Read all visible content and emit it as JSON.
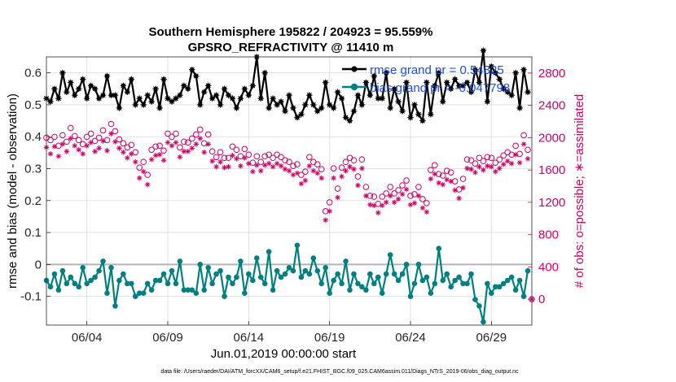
{
  "chart_data": {
    "type": "line",
    "title": "Southern Hemisphere 195822 / 204923 = 95.559%",
    "subtitle": "GPSRO_REFRACTIVITY @ 11410 m",
    "xlabel": "Jun.01,2019 00:00:00 start",
    "ylabel": "rmse and bias (model - observation)",
    "y2label": "# of obs: o=possible; ∗=assimilated",
    "footnote": "data file: /Users/raeder/DAI/ATM_forcXX/CAM6_setup/f.e21.FHIST_BGC.f09_025.CAM6assim.011/Diags_NTrS_2019-06/obs_diag_output.nc",
    "xlim": [
      1.5,
      31.5
    ],
    "ylim": [
      -0.19,
      0.65
    ],
    "y2lim": [
      -320,
      3000
    ],
    "x_ticks": [
      4,
      9,
      14,
      19,
      24,
      29
    ],
    "x_tick_labels": [
      "06/04",
      "06/09",
      "06/14",
      "06/19",
      "06/24",
      "06/29"
    ],
    "y_ticks": [
      -0.1,
      0,
      0.1,
      0.2,
      0.3,
      0.4,
      0.5,
      0.6
    ],
    "y_tick_labels": [
      "-0.1",
      "0",
      "0.1",
      "0.2",
      "0.3",
      "0.4",
      "0.5",
      "0.6"
    ],
    "y2_ticks": [
      0,
      400,
      800,
      1200,
      1600,
      2000,
      2400,
      2800
    ],
    "y2_tick_labels": [
      "0",
      "400",
      "800",
      "1200",
      "1600",
      "2000",
      "2400",
      "2800"
    ],
    "grid": true,
    "legend_position": "top-right",
    "x": [
      1.5,
      1.75,
      2.0,
      2.25,
      2.5,
      2.75,
      3.0,
      3.25,
      3.5,
      3.75,
      4.0,
      4.25,
      4.5,
      4.75,
      5.0,
      5.25,
      5.5,
      5.75,
      6.0,
      6.25,
      6.5,
      6.75,
      7.0,
      7.25,
      7.5,
      7.75,
      8.0,
      8.25,
      8.5,
      8.75,
      9.0,
      9.25,
      9.5,
      9.75,
      10.0,
      10.25,
      10.5,
      10.75,
      11.0,
      11.25,
      11.5,
      11.75,
      12.0,
      12.25,
      12.5,
      12.75,
      13.0,
      13.25,
      13.5,
      13.75,
      14.0,
      14.25,
      14.5,
      14.75,
      15.0,
      15.25,
      15.5,
      15.75,
      16.0,
      16.25,
      16.5,
      16.75,
      17.0,
      17.25,
      17.5,
      17.75,
      18.0,
      18.25,
      18.5,
      18.75,
      19.0,
      19.25,
      19.5,
      19.75,
      20.0,
      20.25,
      20.5,
      20.75,
      21.0,
      21.25,
      21.5,
      21.75,
      22.0,
      22.25,
      22.5,
      22.75,
      23.0,
      23.25,
      23.5,
      23.75,
      24.0,
      24.25,
      24.5,
      24.75,
      25.0,
      25.25,
      25.5,
      25.75,
      26.0,
      26.25,
      26.5,
      26.75,
      27.0,
      27.25,
      27.5,
      27.75,
      28.0,
      28.25,
      28.5,
      28.75,
      29.0,
      29.25,
      29.5,
      29.75,
      30.0,
      30.25,
      30.5,
      30.75,
      31.0,
      31.25
    ],
    "series": [
      {
        "name": "rmse",
        "legend": "rmse grand pr = 0.54825",
        "axis": "left",
        "color": "#000000",
        "marker": "filled-star-line",
        "values": [
          0.52,
          0.51,
          0.55,
          0.52,
          0.6,
          0.54,
          0.57,
          0.53,
          0.55,
          0.58,
          0.52,
          0.56,
          0.55,
          0.52,
          0.53,
          0.59,
          0.53,
          0.53,
          0.49,
          0.56,
          0.54,
          0.58,
          0.5,
          0.52,
          0.5,
          0.53,
          0.51,
          0.55,
          0.49,
          0.58,
          0.52,
          0.51,
          0.52,
          0.53,
          0.56,
          0.55,
          0.61,
          0.59,
          0.5,
          0.54,
          0.56,
          0.52,
          0.53,
          0.5,
          0.55,
          0.53,
          0.52,
          0.49,
          0.52,
          0.55,
          0.53,
          0.56,
          0.65,
          0.52,
          0.6,
          0.49,
          0.52,
          0.5,
          0.51,
          0.48,
          0.53,
          0.49,
          0.46,
          0.47,
          0.5,
          0.53,
          0.5,
          0.48,
          0.49,
          0.57,
          0.5,
          0.49,
          0.54,
          0.52,
          0.46,
          0.45,
          0.48,
          0.53,
          0.5,
          0.57,
          0.53,
          0.59,
          0.52,
          0.52,
          0.6,
          0.49,
          0.55,
          0.51,
          0.48,
          0.57,
          0.46,
          0.5,
          0.47,
          0.45,
          0.57,
          0.47,
          0.56,
          0.6,
          0.51,
          0.57,
          0.55,
          0.58,
          0.56,
          0.56,
          0.57,
          0.54,
          0.61,
          0.57,
          0.67,
          0.51,
          0.62,
          0.6,
          0.58,
          0.55,
          0.54,
          0.53,
          0.6,
          0.49,
          0.61,
          0.54
        ]
      },
      {
        "name": "bias",
        "legend": "bias grand pr = -0.047798",
        "axis": "left",
        "color": "#008080",
        "marker": "filled-circle-line",
        "values": [
          -0.05,
          -0.07,
          -0.03,
          -0.08,
          -0.02,
          -0.06,
          -0.04,
          -0.06,
          -0.07,
          -0.01,
          -0.06,
          -0.05,
          -0.04,
          -0.02,
          0.01,
          -0.09,
          -0.01,
          -0.13,
          -0.05,
          -0.03,
          -0.06,
          -0.06,
          -0.1,
          -0.09,
          -0.09,
          -0.06,
          -0.08,
          -0.05,
          -0.05,
          -0.03,
          -0.06,
          -0.02,
          -0.06,
          0.01,
          -0.08,
          -0.08,
          -0.08,
          -0.09,
          0.0,
          -0.08,
          -0.01,
          -0.06,
          -0.03,
          -0.02,
          -0.1,
          -0.04,
          -0.06,
          -0.04,
          0.01,
          -0.09,
          -0.03,
          -0.05,
          0.02,
          -0.04,
          -0.06,
          0.04,
          -0.08,
          -0.02,
          -0.04,
          -0.03,
          -0.01,
          -0.02,
          0.06,
          -0.04,
          -0.02,
          -0.03,
          0.02,
          -0.02,
          -0.06,
          -0.01,
          -0.09,
          -0.05,
          -0.03,
          -0.06,
          0.01,
          -0.08,
          -0.03,
          -0.06,
          -0.07,
          -0.08,
          -0.03,
          -0.06,
          -0.04,
          -0.09,
          -0.03,
          0.03,
          -0.03,
          -0.05,
          -0.03,
          0.0,
          -0.1,
          -0.06,
          0.0,
          -0.05,
          -0.04,
          -0.09,
          -0.06,
          0.05,
          -0.05,
          -0.03,
          -0.07,
          -0.05,
          -0.04,
          -0.06,
          -0.06,
          -0.03,
          -0.11,
          -0.13,
          -0.18,
          -0.06,
          -0.09,
          -0.07,
          -0.07,
          -0.06,
          -0.05,
          -0.04,
          -0.08,
          -0.05,
          -0.1,
          -0.02
        ]
      },
      {
        "name": "obs possible",
        "axis": "right",
        "color": "#cc0066",
        "marker": "open-circle",
        "values": [
          2000,
          1970,
          2010,
          1900,
          2030,
          1950,
          2120,
          2020,
          1970,
          1920,
          2010,
          2050,
          1960,
          2000,
          2090,
          1970,
          2170,
          2080,
          1980,
          1930,
          1880,
          1910,
          1820,
          1630,
          1700,
          1540,
          1850,
          1890,
          1900,
          1840,
          2050,
          2010,
          2050,
          1880,
          1950,
          1940,
          1990,
          2040,
          2100,
          1930,
          2040,
          1830,
          1760,
          1820,
          1750,
          1750,
          1890,
          1850,
          1770,
          1860,
          1790,
          1690,
          1770,
          1700,
          1770,
          1790,
          1750,
          1790,
          1760,
          1720,
          1700,
          1650,
          1670,
          1540,
          1580,
          1760,
          1700,
          1670,
          1610,
          1090,
          1200,
          1620,
          1370,
          1630,
          1700,
          1750,
          1720,
          1520,
          1730,
          1390,
          1280,
          1270,
          1180,
          1270,
          1310,
          1390,
          1310,
          1350,
          1410,
          1470,
          1280,
          1300,
          1390,
          1240,
          1190,
          1600,
          1660,
          1550,
          1530,
          1590,
          1570,
          1460,
          1360,
          1490,
          1730,
          1720,
          1680,
          1750,
          1710,
          1760,
          1750,
          1690,
          1730,
          1780,
          1820,
          1790,
          1900,
          1800,
          2030,
          1850
        ]
      },
      {
        "name": "obs assimilated",
        "axis": "right",
        "color": "#cc0066",
        "marker": "asterisk",
        "values": [
          1880,
          1800,
          1890,
          1770,
          1920,
          1830,
          1990,
          1900,
          1850,
          1800,
          1900,
          1940,
          1830,
          1870,
          1960,
          1840,
          2050,
          1950,
          1870,
          1820,
          1750,
          1800,
          1700,
          1500,
          1580,
          1420,
          1730,
          1780,
          1790,
          1720,
          1940,
          1900,
          1940,
          1760,
          1830,
          1830,
          1870,
          1920,
          1990,
          1820,
          1920,
          1710,
          1640,
          1700,
          1630,
          1640,
          1780,
          1740,
          1650,
          1750,
          1680,
          1580,
          1660,
          1590,
          1660,
          1680,
          1640,
          1680,
          1650,
          1610,
          1590,
          1540,
          1560,
          1430,
          1470,
          1650,
          1590,
          1560,
          1500,
          980,
          1090,
          1500,
          1260,
          1520,
          1590,
          1640,
          1610,
          1410,
          1620,
          1280,
          1170,
          1160,
          1070,
          1160,
          1200,
          1280,
          1200,
          1240,
          1300,
          1360,
          1170,
          1190,
          1280,
          1130,
          1080,
          1490,
          1550,
          1440,
          1420,
          1480,
          1460,
          1350,
          1250,
          1380,
          1620,
          1610,
          1570,
          1640,
          1600,
          1650,
          1640,
          1580,
          1620,
          1670,
          1710,
          1680,
          1790,
          1690,
          1920,
          1740
        ]
      }
    ],
    "annotations": [
      {
        "type": "open-circle",
        "x": 31.5,
        "value": 0,
        "axis": "right"
      },
      {
        "type": "asterisk",
        "x": 31.5,
        "value": 0,
        "axis": "right"
      }
    ]
  }
}
